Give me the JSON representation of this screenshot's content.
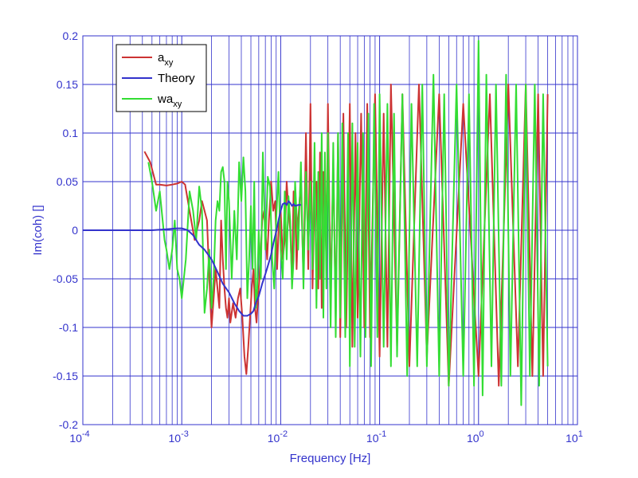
{
  "chart_data": {
    "type": "line",
    "xlabel": "Frequency  [Hz]",
    "ylabel": "Im(coh)  []",
    "xscale": "log",
    "xlim": [
      0.0001,
      10
    ],
    "ylim": [
      -0.2,
      0.2
    ],
    "grid": true,
    "legend_position": "top-left",
    "x_tick_labels": [
      {
        "base": "10",
        "exp": "-4"
      },
      {
        "base": "10",
        "exp": "-3"
      },
      {
        "base": "10",
        "exp": "-2"
      },
      {
        "base": "10",
        "exp": "-1"
      },
      {
        "base": "10",
        "exp": "0"
      },
      {
        "base": "10",
        "exp": "1"
      }
    ],
    "y_tick_labels": [
      "0.2",
      "0.15",
      "0.1",
      "0.05",
      "0",
      "-0.05",
      "-0.1",
      "-0.15",
      "-0.2"
    ],
    "colors": {
      "axes": "#3333cc",
      "grid": "#3333cc"
    },
    "series": [
      {
        "name": "a",
        "name_sub": "xy",
        "color": "#cc3333",
        "x": [
          0.00042,
          0.00048,
          0.00055,
          0.0006,
          0.0007,
          0.0008,
          0.0009,
          0.001,
          0.00108,
          0.0012,
          0.00135,
          0.0015,
          0.0016,
          0.0017,
          0.0018,
          0.0019,
          0.002,
          0.0021,
          0.0022,
          0.0023,
          0.0024,
          0.0025,
          0.0026,
          0.0027,
          0.0028,
          0.0029,
          0.003,
          0.0031,
          0.0032,
          0.0033,
          0.0035,
          0.0037,
          0.0039,
          0.0041,
          0.0043,
          0.0045,
          0.0047,
          0.0049,
          0.0051,
          0.0053,
          0.0055,
          0.0057,
          0.0059,
          0.0061,
          0.0063,
          0.0065,
          0.0068,
          0.007,
          0.0073,
          0.0076,
          0.008,
          0.0084,
          0.0088,
          0.0092,
          0.0096,
          0.01,
          0.0105,
          0.011,
          0.0115,
          0.012,
          0.0125,
          0.013,
          0.0135,
          0.014,
          0.0145,
          0.015,
          0.016,
          0.017,
          0.018,
          0.019,
          0.02,
          0.021,
          0.022,
          0.023,
          0.024,
          0.025,
          0.026,
          0.027,
          0.028,
          0.029,
          0.03,
          0.032,
          0.034,
          0.036,
          0.038,
          0.04,
          0.043,
          0.046,
          0.05,
          0.053,
          0.057,
          0.06,
          0.065,
          0.07,
          0.075,
          0.08,
          0.09,
          0.1,
          0.11,
          0.12,
          0.13,
          0.15,
          0.17,
          0.2,
          0.25,
          0.3,
          0.4,
          0.5,
          0.7,
          1,
          1.3,
          1.6,
          2,
          2.5,
          3,
          3.5,
          4,
          4.5,
          5
        ],
        "y": [
          0.081,
          0.07,
          0.047,
          0.047,
          0.046,
          0.047,
          0.048,
          0.05,
          0.047,
          0.02,
          -0.01,
          0.01,
          0.03,
          0.02,
          0.01,
          -0.05,
          -0.1,
          -0.07,
          -0.04,
          -0.06,
          -0.08,
          0.01,
          -0.03,
          -0.06,
          -0.08,
          -0.09,
          -0.07,
          -0.095,
          -0.085,
          -0.075,
          -0.09,
          -0.07,
          -0.06,
          -0.09,
          -0.13,
          -0.148,
          -0.12,
          -0.09,
          -0.06,
          -0.04,
          -0.08,
          -0.095,
          -0.07,
          -0.05,
          -0.02,
          0.01,
          0.02,
          0.0,
          -0.03,
          0.01,
          0.05,
          0.02,
          0.03,
          -0.04,
          0.01,
          0.02,
          -0.03,
          -0.01,
          0.05,
          0.02,
          0.0,
          -0.05,
          0.04,
          0.03,
          -0.04,
          0.01,
          0.05,
          -0.05,
          0.1,
          -0.04,
          0.13,
          -0.06,
          0.04,
          0.05,
          -0.06,
          0.08,
          -0.08,
          0.06,
          0.02,
          -0.03,
          0.13,
          -0.07,
          0.07,
          -0.09,
          0.1,
          -0.11,
          0.12,
          -0.1,
          0.13,
          -0.12,
          0.1,
          -0.09,
          0.12,
          -0.1,
          0.13,
          -0.11,
          0.14,
          -0.13,
          0.12,
          -0.12,
          0.15,
          -0.12,
          0.14,
          -0.14,
          0.15,
          -0.13,
          0.14,
          -0.16,
          0.13,
          -0.15,
          0.14,
          -0.16,
          0.15,
          -0.14,
          0.15,
          -0.15,
          0.14,
          -0.15,
          0.14
        ]
      },
      {
        "name": "Theory",
        "name_sub": "",
        "color": "#3333cc",
        "x": [
          0.0001,
          0.0002,
          0.0003,
          0.0005,
          0.0007,
          0.0009,
          0.001,
          0.00115,
          0.0013,
          0.0015,
          0.0017,
          0.002,
          0.0023,
          0.0026,
          0.003,
          0.0034,
          0.0038,
          0.0042,
          0.0046,
          0.005,
          0.0053,
          0.0056,
          0.006,
          0.0065,
          0.007,
          0.0075,
          0.008,
          0.0085,
          0.009,
          0.0095,
          0.01,
          0.0105,
          0.011,
          0.0115,
          0.012,
          0.0125,
          0.013,
          0.0135,
          0.014,
          0.015,
          0.016
        ],
        "y": [
          0,
          0,
          0,
          0,
          0.001,
          0.002,
          0.002,
          0.0,
          -0.005,
          -0.015,
          -0.02,
          -0.03,
          -0.043,
          -0.055,
          -0.064,
          -0.075,
          -0.083,
          -0.088,
          -0.088,
          -0.086,
          -0.083,
          -0.075,
          -0.068,
          -0.055,
          -0.045,
          -0.035,
          -0.025,
          -0.012,
          -0.002,
          0.01,
          0.02,
          0.027,
          0.028,
          0.026,
          0.03,
          0.028,
          0.025,
          0.027,
          0.025,
          0.026,
          0.026
        ]
      },
      {
        "name": "wa",
        "name_sub": "xy",
        "color": "#33dd33",
        "x": [
          0.00046,
          0.0005,
          0.00055,
          0.0006,
          0.00067,
          0.0007,
          0.00075,
          0.0008,
          0.00085,
          0.0009,
          0.00095,
          0.001,
          0.0011,
          0.0012,
          0.0013,
          0.0014,
          0.0015,
          0.0016,
          0.0017,
          0.0018,
          0.0019,
          0.002,
          0.0021,
          0.0022,
          0.0023,
          0.0024,
          0.0025,
          0.0026,
          0.0027,
          0.0028,
          0.0029,
          0.003,
          0.0032,
          0.0034,
          0.0036,
          0.0038,
          0.004,
          0.0042,
          0.0044,
          0.0046,
          0.0048,
          0.005,
          0.0052,
          0.0054,
          0.0056,
          0.0058,
          0.006,
          0.0063,
          0.0066,
          0.007,
          0.0074,
          0.0078,
          0.0082,
          0.0086,
          0.009,
          0.0095,
          0.01,
          0.0105,
          0.011,
          0.0115,
          0.012,
          0.0125,
          0.013,
          0.0135,
          0.014,
          0.015,
          0.016,
          0.017,
          0.018,
          0.019,
          0.02,
          0.021,
          0.022,
          0.023,
          0.024,
          0.025,
          0.026,
          0.027,
          0.028,
          0.029,
          0.03,
          0.032,
          0.034,
          0.036,
          0.038,
          0.04,
          0.042,
          0.045,
          0.048,
          0.05,
          0.053,
          0.056,
          0.06,
          0.064,
          0.068,
          0.072,
          0.077,
          0.082,
          0.088,
          0.095,
          0.1,
          0.11,
          0.12,
          0.13,
          0.14,
          0.15,
          0.17,
          0.19,
          0.21,
          0.24,
          0.27,
          0.3,
          0.35,
          0.4,
          0.45,
          0.5,
          0.6,
          0.7,
          0.8,
          0.9,
          1,
          1.1,
          1.2,
          1.35,
          1.5,
          1.7,
          1.9,
          2.1,
          2.4,
          2.7,
          3,
          3.3,
          3.7,
          4.1,
          4.5,
          5
        ],
        "y": [
          0.07,
          0.05,
          0.02,
          0.04,
          -0.01,
          -0.02,
          -0.04,
          -0.02,
          0.01,
          -0.04,
          -0.05,
          -0.07,
          -0.03,
          0.04,
          0.02,
          -0.01,
          0.045,
          0.02,
          -0.085,
          -0.06,
          -0.02,
          -0.08,
          -0.05,
          0.01,
          0.03,
          0.02,
          0.06,
          0.065,
          0.05,
          -0.04,
          0.05,
          0.03,
          -0.05,
          0.02,
          -0.03,
          0.07,
          0.03,
          0.075,
          0.04,
          -0.07,
          -0.03,
          0.025,
          -0.04,
          0.05,
          -0.08,
          -0.06,
          0.0,
          -0.05,
          0.08,
          -0.02,
          0.055,
          0.045,
          -0.03,
          -0.06,
          0.01,
          0.06,
          -0.02,
          -0.05,
          0.04,
          -0.03,
          0.035,
          0.01,
          -0.06,
          -0.03,
          0.05,
          -0.02,
          0.07,
          -0.06,
          0.06,
          -0.02,
          0.05,
          -0.04,
          0.09,
          -0.08,
          0.06,
          -0.05,
          0.1,
          -0.09,
          0.08,
          -0.06,
          0.1,
          -0.1,
          0.09,
          -0.11,
          0.1,
          -0.09,
          0.11,
          -0.11,
          0.1,
          -0.14,
          0.11,
          -0.12,
          0.09,
          -0.13,
          0.1,
          -0.11,
          0.12,
          -0.14,
          0.13,
          -0.11,
          0.14,
          -0.12,
          0.13,
          -0.14,
          0.12,
          -0.13,
          0.14,
          -0.15,
          0.13,
          -0.14,
          0.15,
          -0.14,
          0.16,
          -0.15,
          0.14,
          -0.16,
          0.15,
          -0.15,
          0.14,
          -0.16,
          0.195,
          -0.17,
          0.16,
          -0.14,
          0.15,
          -0.16,
          0.16,
          -0.15,
          0.15,
          -0.18,
          0.15,
          -0.15,
          0.15,
          -0.16,
          0.14,
          -0.14
        ]
      }
    ]
  }
}
